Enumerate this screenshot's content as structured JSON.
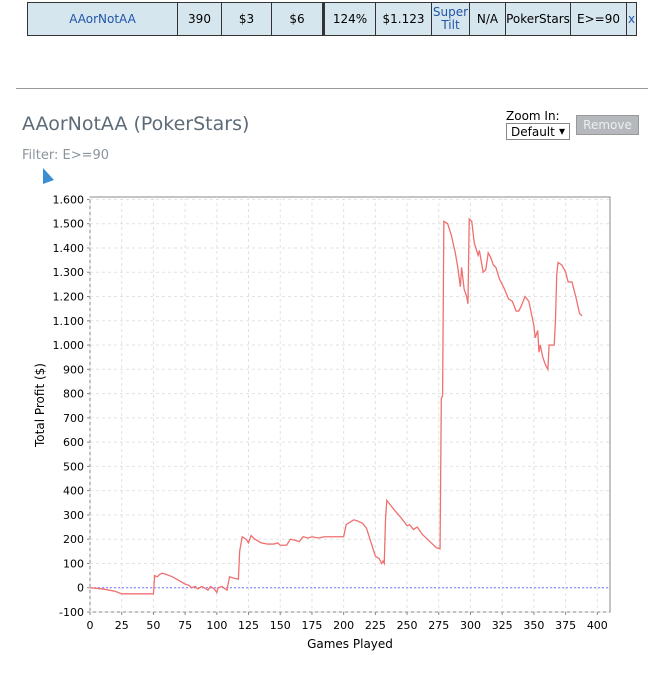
{
  "table": {
    "rows": [
      [
        "AAorNotAA",
        "390",
        "$3",
        "$6",
        "124%",
        "$1.123",
        "Super Tilt",
        "N/A",
        "PokerStars",
        "E>=90",
        "x"
      ]
    ]
  },
  "header": {
    "title": "AAorNotAA (PokerStars)",
    "filter": "Filter: E>=90"
  },
  "controls": {
    "zoom_label": "Zoom In:",
    "zoom_value": "Default",
    "remove": "Remove"
  },
  "chart_data": {
    "type": "line",
    "x_label": "Games Played",
    "y_label": "Total Profit ($)",
    "x": [
      0,
      10,
      20,
      25,
      50,
      51,
      53,
      55,
      57,
      60,
      65,
      70,
      75,
      78,
      80,
      83,
      85,
      88,
      90,
      93,
      95,
      98,
      100,
      101,
      104,
      108,
      110,
      113,
      117,
      118,
      120,
      123,
      125,
      127,
      130,
      135,
      140,
      145,
      148,
      150,
      155,
      158,
      162,
      165,
      168,
      172,
      175,
      180,
      185,
      200,
      202,
      205,
      208,
      211,
      215,
      218,
      222,
      225,
      228,
      230,
      231,
      232,
      233,
      234,
      237,
      240,
      245,
      248,
      250,
      252,
      255,
      258,
      262,
      266,
      270,
      273,
      276,
      277,
      278,
      279,
      282,
      285,
      288,
      290,
      292,
      293,
      295,
      297,
      298,
      299,
      301,
      303,
      306,
      307,
      310,
      312,
      314,
      316,
      318,
      320,
      323,
      326,
      330,
      333,
      336,
      338,
      340,
      343,
      346,
      350,
      351,
      353,
      354,
      355,
      357,
      359,
      361,
      362,
      366,
      367,
      368,
      369,
      372,
      375,
      377,
      380,
      383,
      386,
      388
    ],
    "series": [
      {
        "name": "Total Profit",
        "color": "#f07070",
        "values": [
          0,
          -5,
          -15,
          -25,
          -25,
          50,
          45,
          55,
          60,
          55,
          45,
          30,
          15,
          10,
          0,
          5,
          -5,
          5,
          0,
          -10,
          5,
          -5,
          -20,
          0,
          5,
          -10,
          45,
          40,
          35,
          150,
          210,
          200,
          185,
          215,
          200,
          185,
          180,
          180,
          185,
          175,
          175,
          200,
          195,
          190,
          210,
          205,
          210,
          205,
          210,
          210,
          260,
          270,
          280,
          275,
          265,
          245,
          180,
          130,
          120,
          100,
          110,
          100,
          280,
          360,
          340,
          320,
          290,
          270,
          255,
          260,
          240,
          250,
          220,
          200,
          180,
          165,
          160,
          780,
          790,
          1510,
          1500,
          1450,
          1380,
          1320,
          1240,
          1320,
          1230,
          1200,
          1170,
          1520,
          1510,
          1420,
          1370,
          1390,
          1300,
          1310,
          1380,
          1360,
          1330,
          1320,
          1270,
          1240,
          1190,
          1180,
          1140,
          1140,
          1160,
          1200,
          1180,
          1080,
          1030,
          1060,
          970,
          1000,
          950,
          920,
          900,
          1000,
          1000,
          1100,
          1290,
          1340,
          1330,
          1300,
          1260,
          1260,
          1200,
          1130,
          1120
        ]
      }
    ],
    "xlim": [
      0,
      410
    ],
    "ylim": [
      -100,
      1610
    ],
    "xticks": [
      0,
      25,
      50,
      75,
      100,
      125,
      150,
      175,
      200,
      225,
      250,
      275,
      300,
      325,
      350,
      375,
      400
    ],
    "yticks": [
      -100,
      0,
      100,
      200,
      300,
      400,
      500,
      600,
      700,
      800,
      900,
      {
        "value": 1000,
        "label": "1.000"
      },
      {
        "value": 1100,
        "label": "1.100"
      },
      {
        "value": 1200,
        "label": "1.200"
      },
      {
        "value": 1300,
        "label": "1.300"
      },
      {
        "value": 1400,
        "label": "1.400"
      },
      {
        "value": 1500,
        "label": "1.500"
      },
      {
        "value": 1600,
        "label": "1.600"
      }
    ],
    "grid": true,
    "zero_line": true
  }
}
